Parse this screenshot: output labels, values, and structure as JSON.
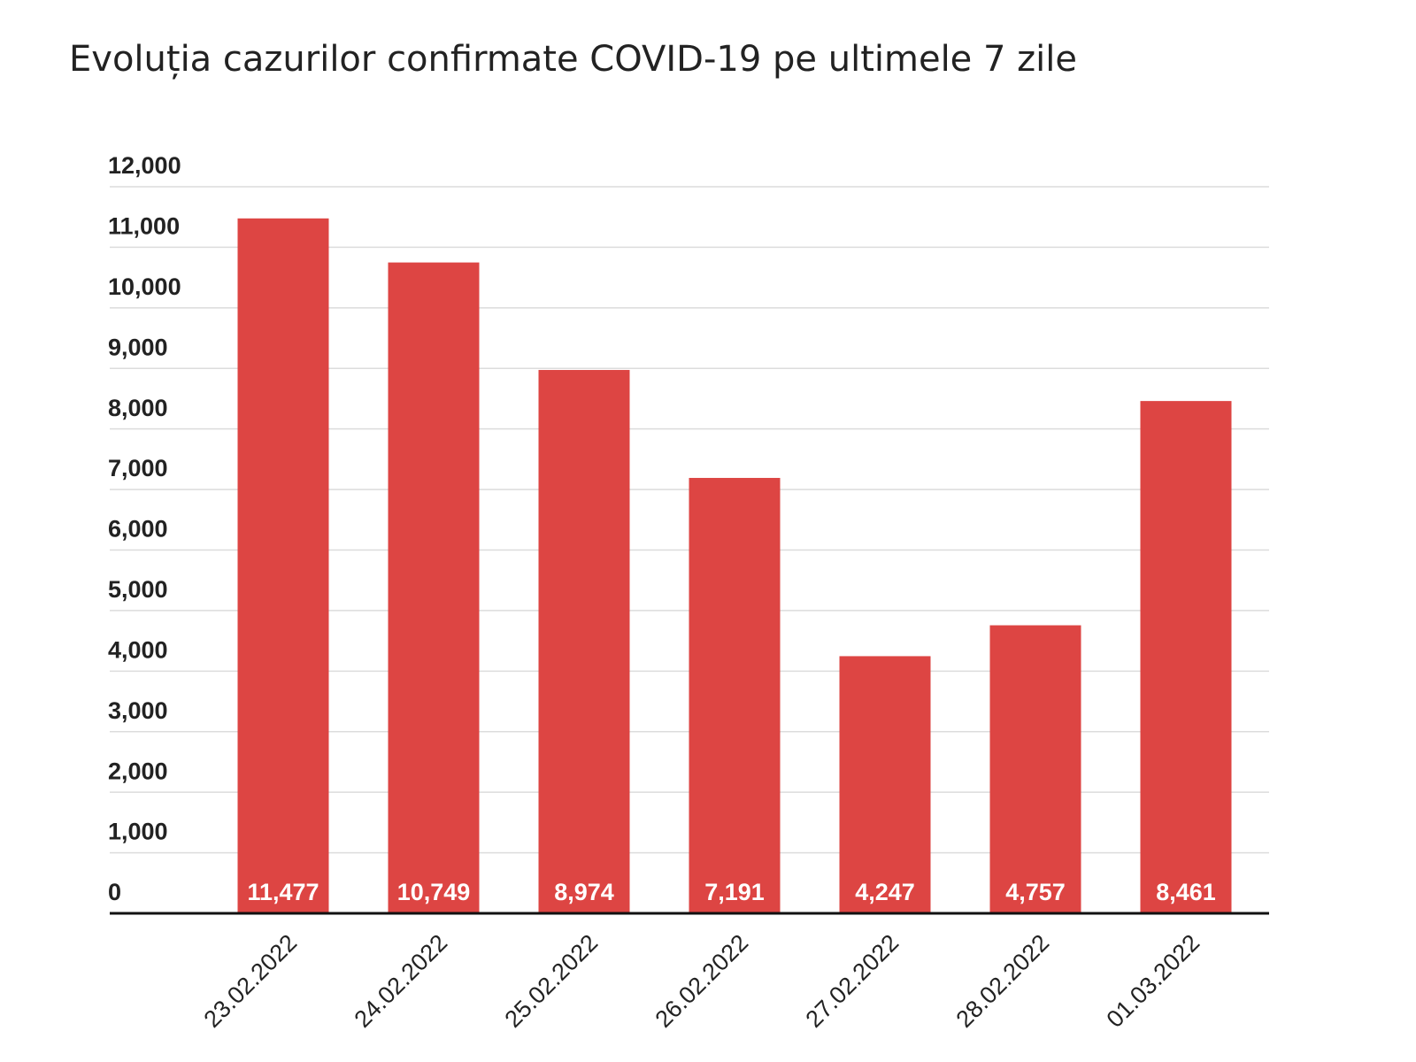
{
  "chart_data": {
    "type": "bar",
    "title": "Evoluția cazurilor confirmate COVID-19 pe ultimele 7 zile",
    "categories": [
      "23.02.2022",
      "24.02.2022",
      "25.02.2022",
      "26.02.2022",
      "27.02.2022",
      "28.02.2022",
      "01.03.2022"
    ],
    "values": [
      11477,
      10749,
      8974,
      7191,
      4247,
      4757,
      8461
    ],
    "value_labels": [
      "11,477",
      "10,749",
      "8,974",
      "7,191",
      "4,247",
      "4,757",
      "8,461"
    ],
    "color": "#dd4543",
    "ylim": [
      0,
      12000
    ],
    "yticks": [
      0,
      {
        "value": 1000,
        "label": "1,000"
      },
      {
        "value": 2000,
        "label": "2,000"
      },
      {
        "value": 3000,
        "label": "3,000"
      },
      {
        "value": 4000,
        "label": "4,000"
      },
      {
        "value": 5000,
        "label": "5,000"
      },
      {
        "value": 6000,
        "label": "6,000"
      },
      {
        "value": 7000,
        "label": "7,000"
      },
      {
        "value": 8000,
        "label": "8,000"
      },
      {
        "value": 9000,
        "label": "9,000"
      },
      {
        "value": 10000,
        "label": "10,000"
      },
      {
        "value": 11000,
        "label": "11,000"
      },
      {
        "value": 12000,
        "label": "12,000"
      }
    ],
    "grid": true
  }
}
